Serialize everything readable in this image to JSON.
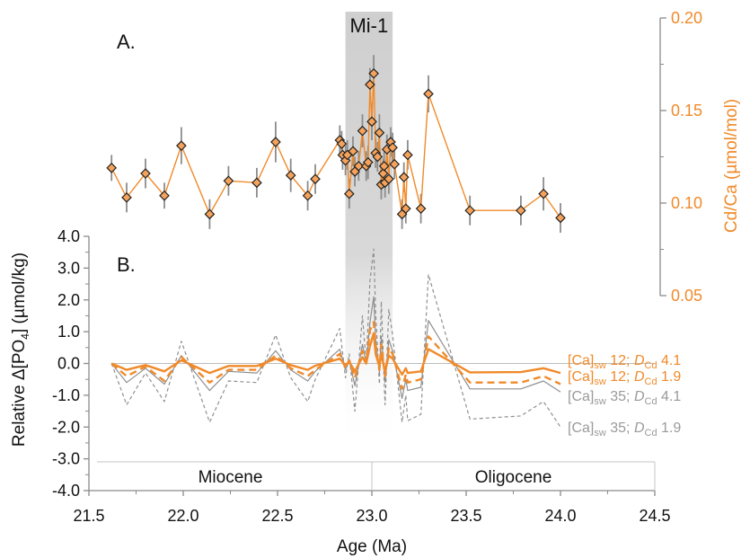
{
  "chart_data": {
    "type": "line",
    "x_axis": {
      "label": "Age (Ma)",
      "range": [
        21.5,
        24.5
      ],
      "ticks": [
        "21.5",
        "22.0",
        "22.5",
        "23.0",
        "23.5",
        "24.0",
        "24.5"
      ]
    },
    "event_label": "Mi-1",
    "event_range": [
      22.86,
      23.11
    ],
    "panels": [
      {
        "id": "A",
        "panel_label": "A.",
        "type": "scatter-line",
        "y_axis": {
          "label": "Cd/Ca (µmol/mol)",
          "side": "right",
          "range": [
            0.05,
            0.2
          ],
          "ticks": [
            "0.05",
            "0.10",
            "0.15",
            "0.20"
          ]
        },
        "colors": {
          "series": "#f08a2a",
          "marker_fill": "#f5a35c",
          "marker_stroke": "#222222",
          "errorbar": "#8c8c8c"
        },
        "series": [
          {
            "values": [
              [
                21.62,
                0.119,
                0.007
              ],
              [
                21.7,
                0.103,
                0.008
              ],
              [
                21.8,
                0.116,
                0.008
              ],
              [
                21.9,
                0.104,
                0.007
              ],
              [
                21.99,
                0.131,
                0.01
              ],
              [
                22.14,
                0.094,
                0.008
              ],
              [
                22.24,
                0.112,
                0.008
              ],
              [
                22.39,
                0.111,
                0.008
              ],
              [
                22.49,
                0.133,
                0.011
              ],
              [
                22.57,
                0.115,
                0.009
              ],
              [
                22.66,
                0.104,
                0.008
              ],
              [
                22.7,
                0.113,
                0.008
              ],
              [
                22.83,
                0.134,
                0.008
              ],
              [
                22.84,
                0.132,
                0.007
              ],
              [
                22.845,
                0.126,
                0.008
              ],
              [
                22.86,
                0.123,
                0.008
              ],
              [
                22.87,
                0.126,
                0.008
              ],
              [
                22.88,
                0.105,
                0.008
              ],
              [
                22.9,
                0.128,
                0.008
              ],
              [
                22.91,
                0.117,
                0.008
              ],
              [
                22.93,
                0.12,
                0.008
              ],
              [
                22.95,
                0.139,
                0.009
              ],
              [
                22.97,
                0.12,
                0.008
              ],
              [
                22.98,
                0.122,
                0.009
              ],
              [
                22.99,
                0.164,
                0.009
              ],
              [
                23.0,
                0.144,
                0.01
              ],
              [
                23.01,
                0.17,
                0.01
              ],
              [
                23.02,
                0.127,
                0.008
              ],
              [
                23.03,
                0.125,
                0.008
              ],
              [
                23.04,
                0.138,
                0.01
              ],
              [
                23.05,
                0.11,
                0.008
              ],
              [
                23.06,
                0.116,
                0.008
              ],
              [
                23.065,
                0.12,
                0.008
              ],
              [
                23.07,
                0.111,
                0.008
              ],
              [
                23.08,
                0.129,
                0.008
              ],
              [
                23.09,
                0.113,
                0.008
              ],
              [
                23.1,
                0.133,
                0.008
              ],
              [
                23.11,
                0.13,
                0.008
              ],
              [
                23.12,
                0.121,
                0.008
              ],
              [
                23.16,
                0.094,
                0.008
              ],
              [
                23.17,
                0.114,
                0.008
              ],
              [
                23.18,
                0.097,
                0.008
              ],
              [
                23.19,
                0.126,
                0.008
              ],
              [
                23.26,
                0.097,
                0.008
              ],
              [
                23.3,
                0.159,
                0.01
              ],
              [
                23.52,
                0.096,
                0.008
              ],
              [
                23.79,
                0.096,
                0.008
              ],
              [
                23.91,
                0.105,
                0.009
              ],
              [
                24.0,
                0.092,
                0.008
              ]
            ]
          }
        ]
      },
      {
        "id": "B",
        "panel_label": "B.",
        "type": "line",
        "y_axis": {
          "label": "Relative Δ[PO",
          "label_sub": "4",
          "label_end": "] (µmol/kg)",
          "side": "left",
          "range": [
            -4.0,
            4.0
          ],
          "ticks": [
            "-4.0",
            "-3.0",
            "-2.0",
            "-1.0",
            "0.0",
            "1.0",
            "2.0",
            "3.0",
            "4.0"
          ]
        },
        "x": [
          21.62,
          21.7,
          21.8,
          21.9,
          21.99,
          22.14,
          22.24,
          22.39,
          22.49,
          22.57,
          22.66,
          22.7,
          22.83,
          22.86,
          22.88,
          22.91,
          22.95,
          22.97,
          22.99,
          23.01,
          23.02,
          23.04,
          23.05,
          23.07,
          23.09,
          23.11,
          23.16,
          23.18,
          23.19,
          23.26,
          23.3,
          23.52,
          23.79,
          23.91,
          24.0
        ],
        "series": [
          {
            "label": "[Ca]",
            "label_sub": "sw",
            "label_mid": " 12; ",
            "label_d": "D",
            "label_dsub": "Cd",
            "label_end": " 4.1",
            "color": "#f08a2a",
            "dash": "solid",
            "width": 2.4,
            "values": [
              0.0,
              -0.2,
              -0.05,
              -0.25,
              0.1,
              -0.3,
              -0.08,
              -0.08,
              0.15,
              -0.05,
              -0.2,
              -0.07,
              0.15,
              -0.05,
              0.05,
              -0.25,
              0.2,
              0.0,
              0.55,
              0.95,
              0.3,
              -0.1,
              0.3,
              -0.25,
              0.25,
              0.15,
              -0.35,
              -0.15,
              -0.3,
              -0.25,
              0.45,
              -0.28,
              -0.27,
              -0.15,
              -0.3
            ]
          },
          {
            "label": "[Ca]",
            "label_sub": "sw",
            "label_mid": " 12; ",
            "label_d": "D",
            "label_dsub": "Cd",
            "label_end": " 1.9",
            "color": "#f08a2a",
            "dash": "dash",
            "width": 2.4,
            "values": [
              0.0,
              -0.4,
              -0.1,
              -0.55,
              0.2,
              -0.6,
              -0.2,
              -0.2,
              0.25,
              -0.15,
              -0.4,
              -0.2,
              0.3,
              -0.15,
              0.1,
              -0.45,
              0.4,
              0.0,
              1.05,
              1.3,
              0.55,
              -0.2,
              0.6,
              -0.4,
              0.5,
              0.3,
              -0.8,
              -0.35,
              -0.6,
              -0.5,
              0.85,
              -0.6,
              -0.6,
              -0.4,
              -0.65
            ]
          },
          {
            "label": "[Ca]",
            "label_sub": "sw",
            "label_mid": " 35; ",
            "label_d": "D",
            "label_dsub": "Cd",
            "label_end": " 4.1",
            "color": "#8f8f8f",
            "dash": "solid",
            "width": 1.2,
            "values": [
              0.0,
              -0.6,
              -0.15,
              -0.65,
              0.25,
              -0.85,
              -0.25,
              -0.3,
              0.4,
              -0.2,
              -0.55,
              -0.25,
              0.45,
              -0.2,
              0.1,
              -0.7,
              0.6,
              0.0,
              1.3,
              2.1,
              0.75,
              -0.3,
              0.85,
              -0.6,
              0.75,
              0.4,
              -1.1,
              -0.5,
              -0.85,
              -0.75,
              1.35,
              -0.8,
              -0.8,
              -0.55,
              -0.9
            ]
          },
          {
            "label": "[Ca]",
            "label_sub": "sw",
            "label_mid": " 35; ",
            "label_d": "D",
            "label_dsub": "Cd",
            "label_end": " 1.9",
            "color": "#8f8f8f",
            "dash": "dash",
            "width": 1.2,
            "values": [
              0.0,
              -1.3,
              -0.3,
              -1.2,
              0.7,
              -1.85,
              -0.55,
              -0.6,
              0.9,
              -0.45,
              -1.2,
              -0.5,
              1.1,
              -0.45,
              0.3,
              -1.5,
              1.5,
              0.0,
              2.6,
              3.6,
              1.6,
              -0.65,
              1.95,
              -1.3,
              1.7,
              0.9,
              -1.85,
              -1.0,
              -1.8,
              -1.6,
              2.8,
              -1.75,
              -1.65,
              -1.2,
              -2.0
            ]
          }
        ]
      }
    ],
    "epochs": [
      {
        "label": "Miocene",
        "range": [
          21.5,
          23.0
        ]
      },
      {
        "label": "Oligocene",
        "range": [
          23.0,
          24.5
        ]
      }
    ]
  }
}
